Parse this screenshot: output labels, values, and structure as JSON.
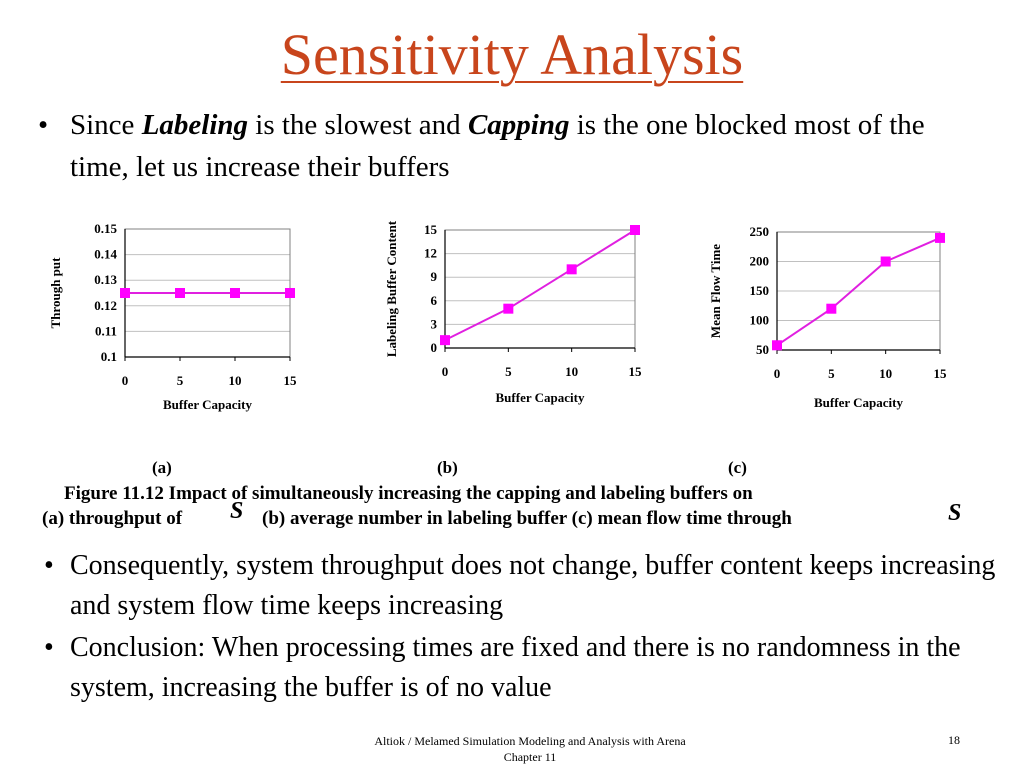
{
  "slide": {
    "title": "Sensitivity Analysis",
    "bullet_symbol": "•",
    "bullet1": {
      "t1": "Since ",
      "e1": "Labeling",
      "t2": " is the slowest and ",
      "e2": "Capping",
      "t3": " is the one blocked most of the time, let us increase their buffers"
    },
    "figure": {
      "panel_labels": [
        "(a)",
        "(b)",
        "(c)"
      ],
      "caption_line1": "Figure 11.12  Impact of simultaneously increasing the capping and labeling buffers on",
      "caption_line2a": "(a) throughput of",
      "caption_line2b": "(b) average number in labeling buffer (c) mean flow time through",
      "symbol": "S"
    },
    "bullets": [
      "Consequently, system throughput does not change, buffer content keeps increasing and system flow time keeps increasing",
      "Conclusion:  When processing times are fixed and there is no randomness in the system, increasing the buffer is of no value"
    ],
    "footer": {
      "line1": "Altiok / Melamed   Simulation Modeling and Analysis with Arena",
      "line2": "Chapter 11",
      "page": "18"
    }
  },
  "colors": {
    "title": "#c8451c",
    "series": "#e020e0",
    "marker": "#ff00ff",
    "grid": "#c0c0c0"
  },
  "chart_data": [
    {
      "type": "line",
      "x": [
        0,
        5,
        10,
        15
      ],
      "series": [
        {
          "values": [
            0.125,
            0.125,
            0.125,
            0.125
          ]
        }
      ],
      "xlabel": "Buffer Capacity",
      "ylabel": "Through put",
      "xticks": [
        "0",
        "5",
        "10",
        "15"
      ],
      "yticks": [
        "0.1",
        "0.11",
        "0.12",
        "0.13",
        "0.14",
        "0.15"
      ],
      "ylim": [
        0.1,
        0.15
      ],
      "grid": "horizontal"
    },
    {
      "type": "line",
      "x": [
        0,
        5,
        10,
        15
      ],
      "series": [
        {
          "values": [
            1,
            5,
            10,
            15
          ]
        }
      ],
      "xlabel": "Buffer Capacity",
      "ylabel": "Labeling Buffer Content",
      "xticks": [
        "0",
        "5",
        "10",
        "15"
      ],
      "yticks": [
        "0",
        "3",
        "6",
        "9",
        "12",
        "15"
      ],
      "ylim": [
        0,
        15
      ],
      "grid": "horizontal"
    },
    {
      "type": "line",
      "x": [
        0,
        5,
        10,
        15
      ],
      "series": [
        {
          "values": [
            58,
            120,
            200,
            240
          ]
        }
      ],
      "xlabel": "Buffer Capacity",
      "ylabel": "Mean Flow Time",
      "xticks": [
        "0",
        "5",
        "10",
        "15"
      ],
      "yticks": [
        "50",
        "100",
        "150",
        "200",
        "250"
      ],
      "ylim": [
        50,
        250
      ],
      "grid": "horizontal"
    }
  ]
}
